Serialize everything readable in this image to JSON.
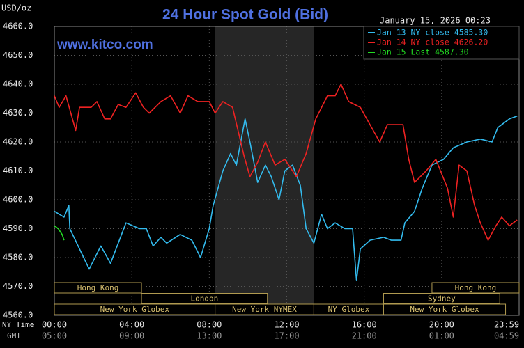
{
  "chart_data": {
    "type": "line",
    "title": "24 Hour Spot Gold (Bid)",
    "timestamp": "January 15, 2026 00:23",
    "watermark": "www.kitco.com",
    "y_label": "USD/oz",
    "x_label": "NY Time",
    "x2_label": "GMT",
    "xlim": [
      0,
      24
    ],
    "xticks": [
      {
        "value": 0,
        "label": "00:00"
      },
      {
        "value": 4,
        "label": "04:00"
      },
      {
        "value": 8,
        "label": "08:00"
      },
      {
        "value": 12,
        "label": "12:00"
      },
      {
        "value": 16,
        "label": "16:00"
      },
      {
        "value": 20,
        "label": "20:00"
      },
      {
        "value": 24,
        "label": "23:59"
      }
    ],
    "x2ticks": [
      "05:00",
      "09:00",
      "13:00",
      "17:00",
      "21:00",
      "01:00",
      "04:59"
    ],
    "ylim": [
      4560,
      4660
    ],
    "yticks": [
      {
        "value": 4560,
        "label": "4560.0"
      },
      {
        "value": 4570,
        "label": "4570.0"
      },
      {
        "value": 4580,
        "label": "4580.0"
      },
      {
        "value": 4590,
        "label": "4590.0"
      },
      {
        "value": 4600,
        "label": "4600.0"
      },
      {
        "value": 4610,
        "label": "4610.0"
      },
      {
        "value": 4620,
        "label": "4620.0"
      },
      {
        "value": 4630,
        "label": "4630.0"
      },
      {
        "value": 4640,
        "label": "4640.0"
      },
      {
        "value": 4650,
        "label": "4650.0"
      },
      {
        "value": 4660,
        "label": "4660.0"
      }
    ],
    "grid": true,
    "shade": [
      8.3,
      13.4
    ],
    "session_rows": [
      [
        {
          "label": "Hong Kong",
          "start": 0,
          "end": 4.5
        },
        {
          "label": "Hong Kong",
          "start": 19.5,
          "end": 24
        }
      ],
      [
        {
          "label": "London",
          "start": 4.5,
          "end": 11
        },
        {
          "label": "Sydney",
          "start": 17,
          "end": 23
        }
      ],
      [
        {
          "label": "New York Globex",
          "start": 0,
          "end": 8.3
        },
        {
          "label": "New York NYMEX",
          "start": 8.3,
          "end": 13.4
        },
        {
          "label": "NY Globex",
          "start": 13.4,
          "end": 17
        },
        {
          "label": "New York Globex",
          "start": 17,
          "end": 23.3
        }
      ]
    ],
    "series": [
      {
        "name": "Jan 13 NY close 4585.30",
        "color": "#33bbee",
        "x": [
          0,
          0.5,
          0.75,
          0.8,
          1.8,
          2.4,
          2.9,
          3.3,
          3.7,
          4.4,
          4.75,
          5.1,
          5.5,
          5.8,
          6.5,
          7.1,
          7.55,
          8,
          8.2,
          8.7,
          9.1,
          9.4,
          9.85,
          10.1,
          10.5,
          10.9,
          11.2,
          11.6,
          11.9,
          12.3,
          12.7,
          13,
          13.4,
          13.8,
          14.1,
          14.5,
          15,
          15.4,
          15.6,
          15.8,
          16.3,
          17,
          17.4,
          17.9,
          18.1,
          18.6,
          19,
          19.5,
          20.1,
          20.6,
          21.3,
          22,
          22.6,
          22.9,
          23.5,
          23.9
        ],
        "values": [
          4596,
          4594,
          4598,
          4590,
          4576,
          4584,
          4578,
          4585,
          4592,
          4590,
          4590,
          4584,
          4587,
          4585,
          4588,
          4586,
          4580,
          4590,
          4598,
          4610,
          4616,
          4612,
          4628,
          4620,
          4606,
          4612,
          4608,
          4600,
          4610,
          4612,
          4605,
          4590,
          4585,
          4595,
          4590,
          4592,
          4590,
          4590,
          4572,
          4583,
          4586,
          4587,
          4586,
          4586,
          4592,
          4596,
          4604,
          4612,
          4614,
          4618,
          4620,
          4621,
          4620,
          4625,
          4628,
          4629
        ]
      },
      {
        "name": "Jan 14 NY close 4626.20",
        "color": "#ee2222",
        "x": [
          0,
          0.25,
          0.6,
          1.1,
          1.3,
          1.9,
          2.2,
          2.6,
          2.9,
          3.3,
          3.7,
          4.2,
          4.6,
          4.9,
          5.5,
          6,
          6.5,
          6.9,
          7.4,
          8,
          8.3,
          8.7,
          9.2,
          9.8,
          10.1,
          10.5,
          10.9,
          11.4,
          11.9,
          12.5,
          13,
          13.5,
          14.1,
          14.5,
          14.8,
          15.2,
          15.8,
          16.3,
          16.8,
          17.2,
          18,
          18.3,
          18.6,
          19.2,
          19.7,
          20.3,
          20.6,
          20.9,
          21.3,
          21.7,
          22,
          22.4,
          22.8,
          23.1,
          23.5,
          23.9
        ],
        "values": [
          4636,
          4632,
          4636,
          4624,
          4632,
          4632,
          4634,
          4628,
          4628,
          4633,
          4632,
          4637,
          4632,
          4630,
          4634,
          4636,
          4630,
          4636,
          4634,
          4634,
          4630,
          4634,
          4632,
          4615,
          4608,
          4613,
          4620,
          4612,
          4614,
          4608,
          4616,
          4628,
          4636,
          4636,
          4640,
          4634,
          4632,
          4626,
          4620,
          4626,
          4626,
          4614,
          4606,
          4610,
          4614,
          4604,
          4594,
          4612,
          4610,
          4598,
          4592,
          4586,
          4591,
          4594,
          4591,
          4593
        ]
      },
      {
        "name": "Jan 15 Last 4587.30",
        "color": "#22dd22",
        "x": [
          0,
          0.2,
          0.4,
          0.5
        ],
        "values": [
          4591,
          4590,
          4588,
          4586
        ]
      }
    ]
  }
}
